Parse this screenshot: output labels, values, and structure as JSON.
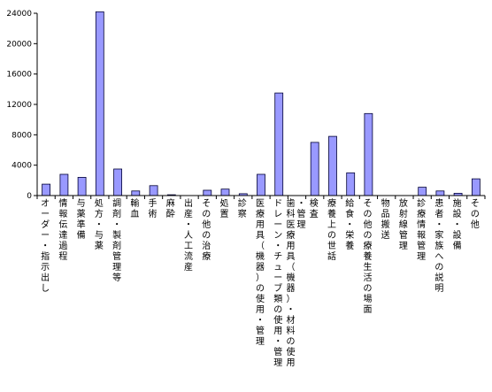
{
  "colors": {
    "bar": "#9999ff",
    "bar_outline": "#000033",
    "axis": "#000000",
    "background": "#ffffff"
  },
  "chart_data": {
    "type": "bar",
    "title": "",
    "xlabel": "",
    "ylabel": "",
    "ylim": [
      0,
      24000
    ],
    "yticks": [
      "0",
      "4000",
      "8000",
      "12000",
      "16000",
      "20000",
      "24000"
    ],
    "grid": false,
    "legend": "none",
    "categories": [
      "オーダー・指示出し",
      "情報伝達過程",
      "与薬準備",
      "処方・与薬",
      "調剤・製剤管理等",
      "輸血",
      "手術",
      "麻酔",
      "出産・人工流産",
      "その他の治療",
      "処置",
      "診察",
      "医療用具（機器）の使用・管理",
      "ドレーン・チューブ類の使用・管理",
      "歯科医療用具（機器）・材料の使用・管理",
      "検査",
      "療養上の世話",
      "給食・栄養",
      "その他の療養生活の場面",
      "物品搬送",
      "放射線管理",
      "診療情報管理",
      "患者・家族への説明",
      "施設・設備",
      "その他"
    ],
    "values": [
      1500,
      2800,
      2400,
      24200,
      3500,
      600,
      1300,
      100,
      0,
      700,
      850,
      250,
      2800,
      13500,
      0,
      7000,
      7800,
      3000,
      10800,
      0,
      0,
      1100,
      600,
      300,
      2200
    ]
  }
}
